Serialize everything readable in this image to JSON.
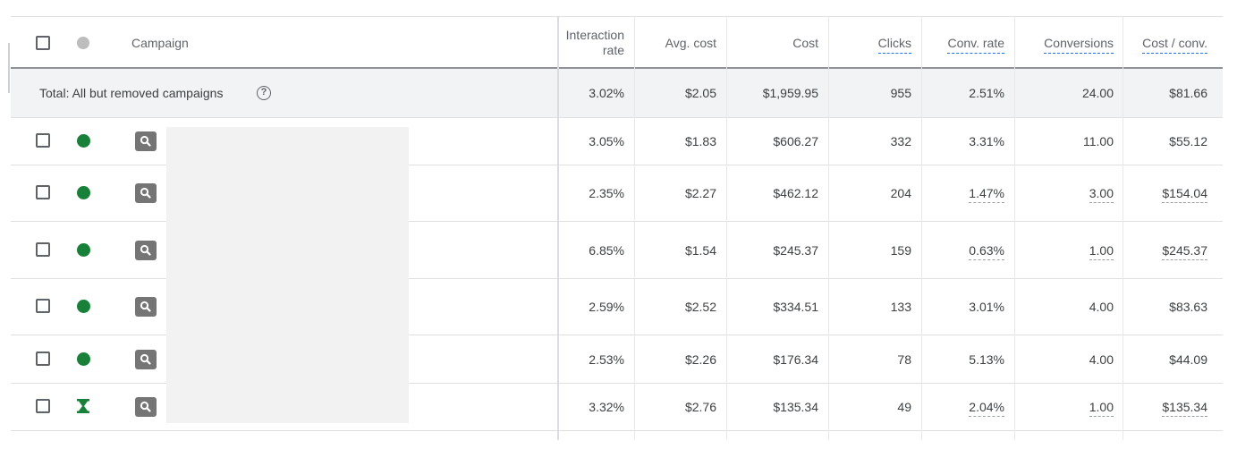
{
  "table": {
    "columns": {
      "campaign": "Campaign",
      "interaction_rate_1": "Interaction",
      "interaction_rate_2": "rate",
      "avg_cost": "Avg. cost",
      "cost": "Cost",
      "clicks": "Clicks",
      "conv_rate": "Conv. rate",
      "conversions": "Conversions",
      "cost_per_conv": "Cost / conv."
    },
    "total": {
      "label": "Total: All but removed campaigns",
      "interaction_rate": "3.02%",
      "avg_cost": "$2.05",
      "cost": "$1,959.95",
      "clicks": "955",
      "conv_rate": "2.51%",
      "conversions": "24.00",
      "cost_per_conv": "$81.66"
    },
    "rows": [
      {
        "status": "eligible",
        "interaction_rate": "3.05%",
        "avg_cost": "$1.83",
        "cost": "$606.27",
        "clicks": "332",
        "conv_rate": "3.31%",
        "conversions": "11.00",
        "cost_per_conv": "$55.12"
      },
      {
        "status": "eligible",
        "interaction_rate": "2.35%",
        "avg_cost": "$2.27",
        "cost": "$462.12",
        "clicks": "204",
        "conv_rate": "1.47%",
        "conversions": "3.00",
        "cost_per_conv": "$154.04"
      },
      {
        "status": "eligible",
        "interaction_rate": "6.85%",
        "avg_cost": "$1.54",
        "cost": "$245.37",
        "clicks": "159",
        "conv_rate": "0.63%",
        "conversions": "1.00",
        "cost_per_conv": "$245.37"
      },
      {
        "status": "eligible",
        "interaction_rate": "2.59%",
        "avg_cost": "$2.52",
        "cost": "$334.51",
        "clicks": "133",
        "conv_rate": "3.01%",
        "conversions": "4.00",
        "cost_per_conv": "$83.63"
      },
      {
        "status": "eligible",
        "interaction_rate": "2.53%",
        "avg_cost": "$2.26",
        "cost": "$176.34",
        "clicks": "78",
        "conv_rate": "5.13%",
        "conversions": "4.00",
        "cost_per_conv": "$44.09"
      },
      {
        "status": "pending",
        "interaction_rate": "3.32%",
        "avg_cost": "$2.76",
        "cost": "$135.34",
        "clicks": "49",
        "conv_rate": "2.04%",
        "conversions": "1.00",
        "cost_per_conv": "$135.34"
      }
    ]
  },
  "icons": {
    "eligible": "green-circle-icon",
    "pending": "green-hourglass-icon",
    "campaign_type": "search-campaign-icon",
    "help": "help-icon"
  },
  "colors": {
    "status_green": "#188038",
    "header_border": "#8f9296",
    "total_bg": "#f1f3f4",
    "dashed_underline": "#1a73e8"
  }
}
